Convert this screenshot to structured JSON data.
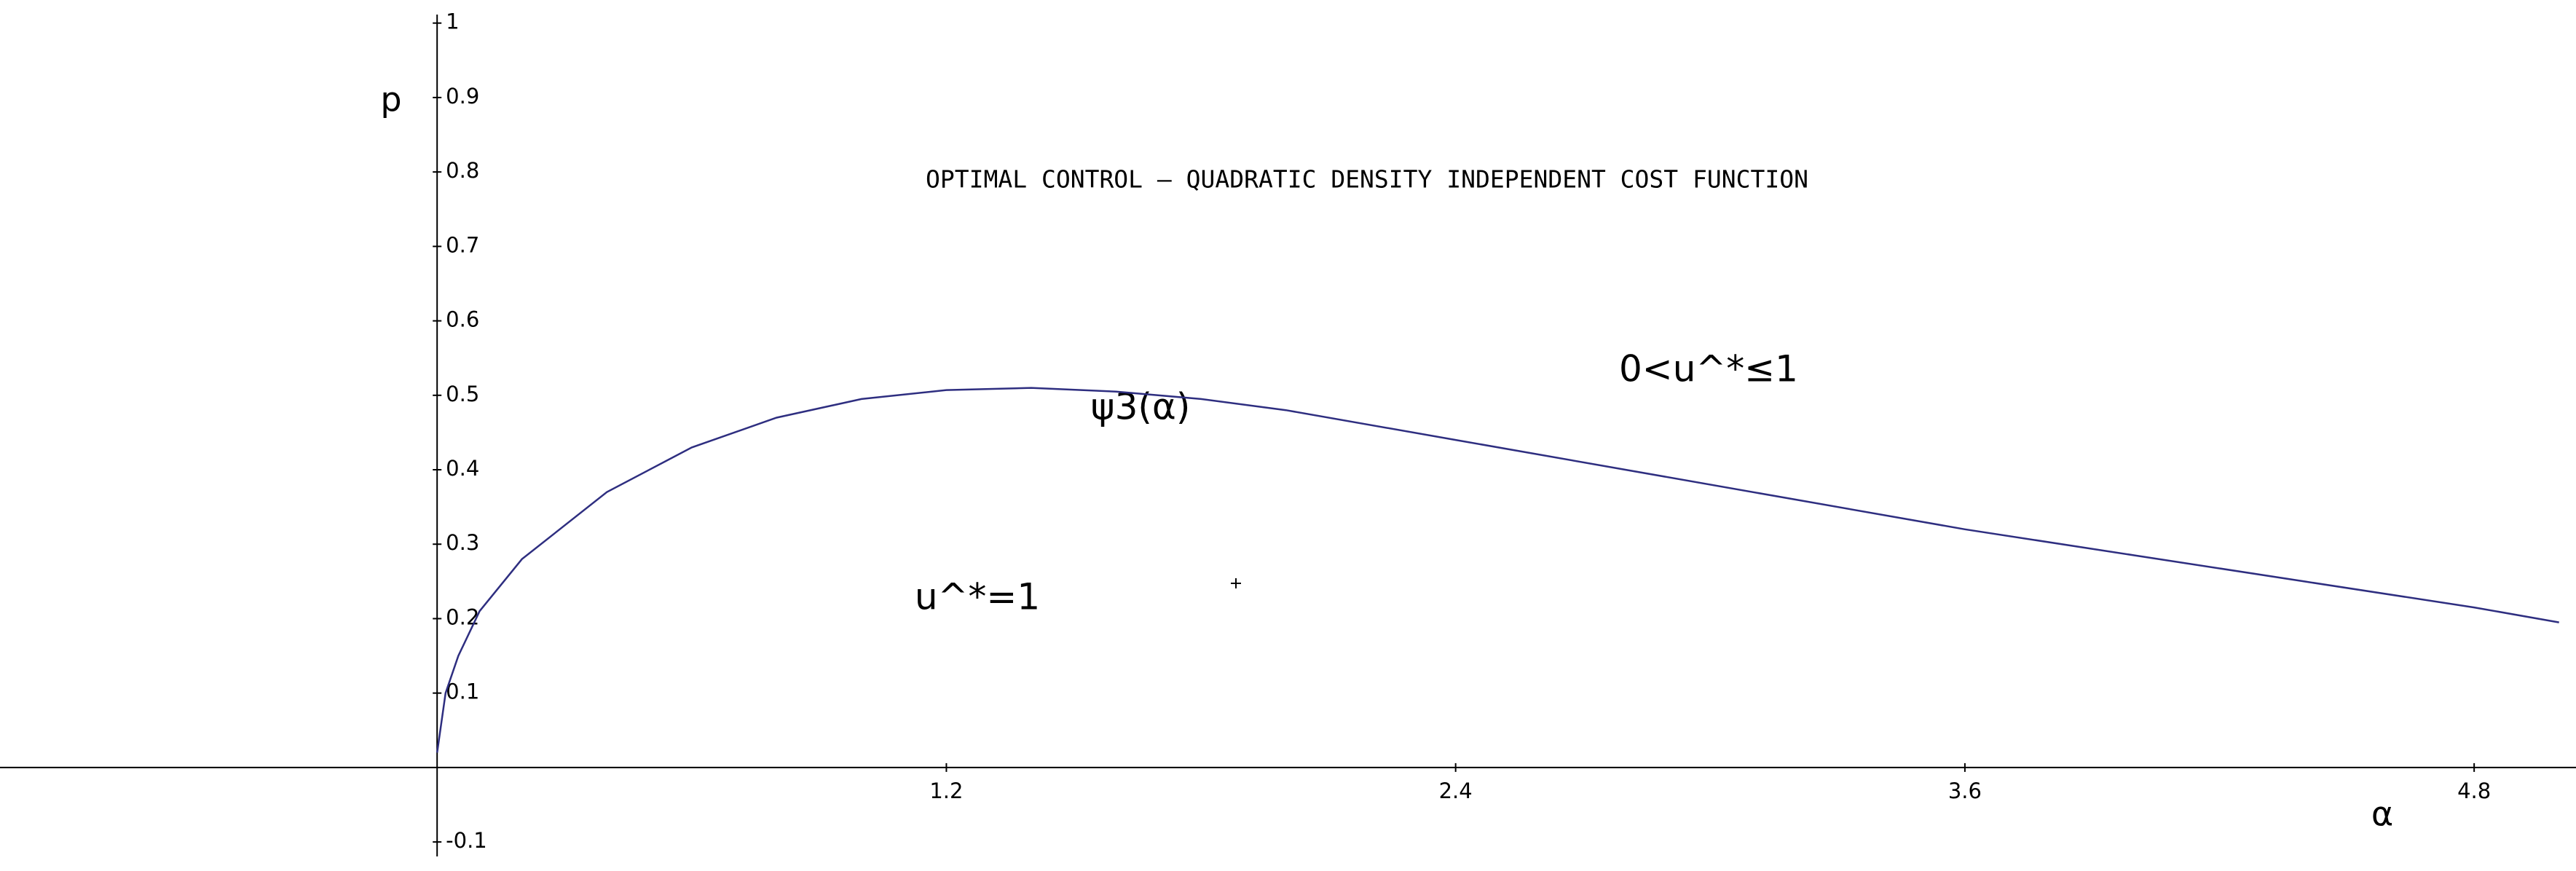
{
  "chart_data": {
    "type": "line",
    "title": "OPTIMAL CONTROL – QUADRATIC DENSITY INDEPENDENT COST FUNCTION",
    "xlabel": "α",
    "ylabel": "p",
    "annotations": [
      "0<u^*≤1",
      "u^*=1"
    ],
    "x": [
      0,
      0.02,
      0.05,
      0.1,
      0.2,
      0.4,
      0.6,
      0.8,
      1.0,
      1.2,
      1.4,
      1.6,
      1.8,
      2.0,
      2.4,
      2.8,
      3.2,
      3.6,
      4.0,
      4.4,
      4.8,
      5.0
    ],
    "series": [
      {
        "name": "ψ3(α)",
        "color": "#2e2e80",
        "values": [
          0.02,
          0.1,
          0.15,
          0.21,
          0.28,
          0.37,
          0.43,
          0.47,
          0.495,
          0.507,
          0.51,
          0.505,
          0.495,
          0.48,
          0.44,
          0.4,
          0.36,
          0.32,
          0.285,
          0.25,
          0.215,
          0.195
        ]
      }
    ],
    "xlim": [
      -1.03,
      5.04
    ],
    "ylim": [
      -0.139,
      1.031
    ],
    "xticks": [
      1.2,
      2.4,
      3.6,
      4.8
    ],
    "yticks": [
      -0.1,
      0.1,
      0.2,
      0.3,
      0.4,
      0.5,
      0.6,
      0.7,
      0.8,
      0.9,
      1
    ],
    "grid": false
  }
}
